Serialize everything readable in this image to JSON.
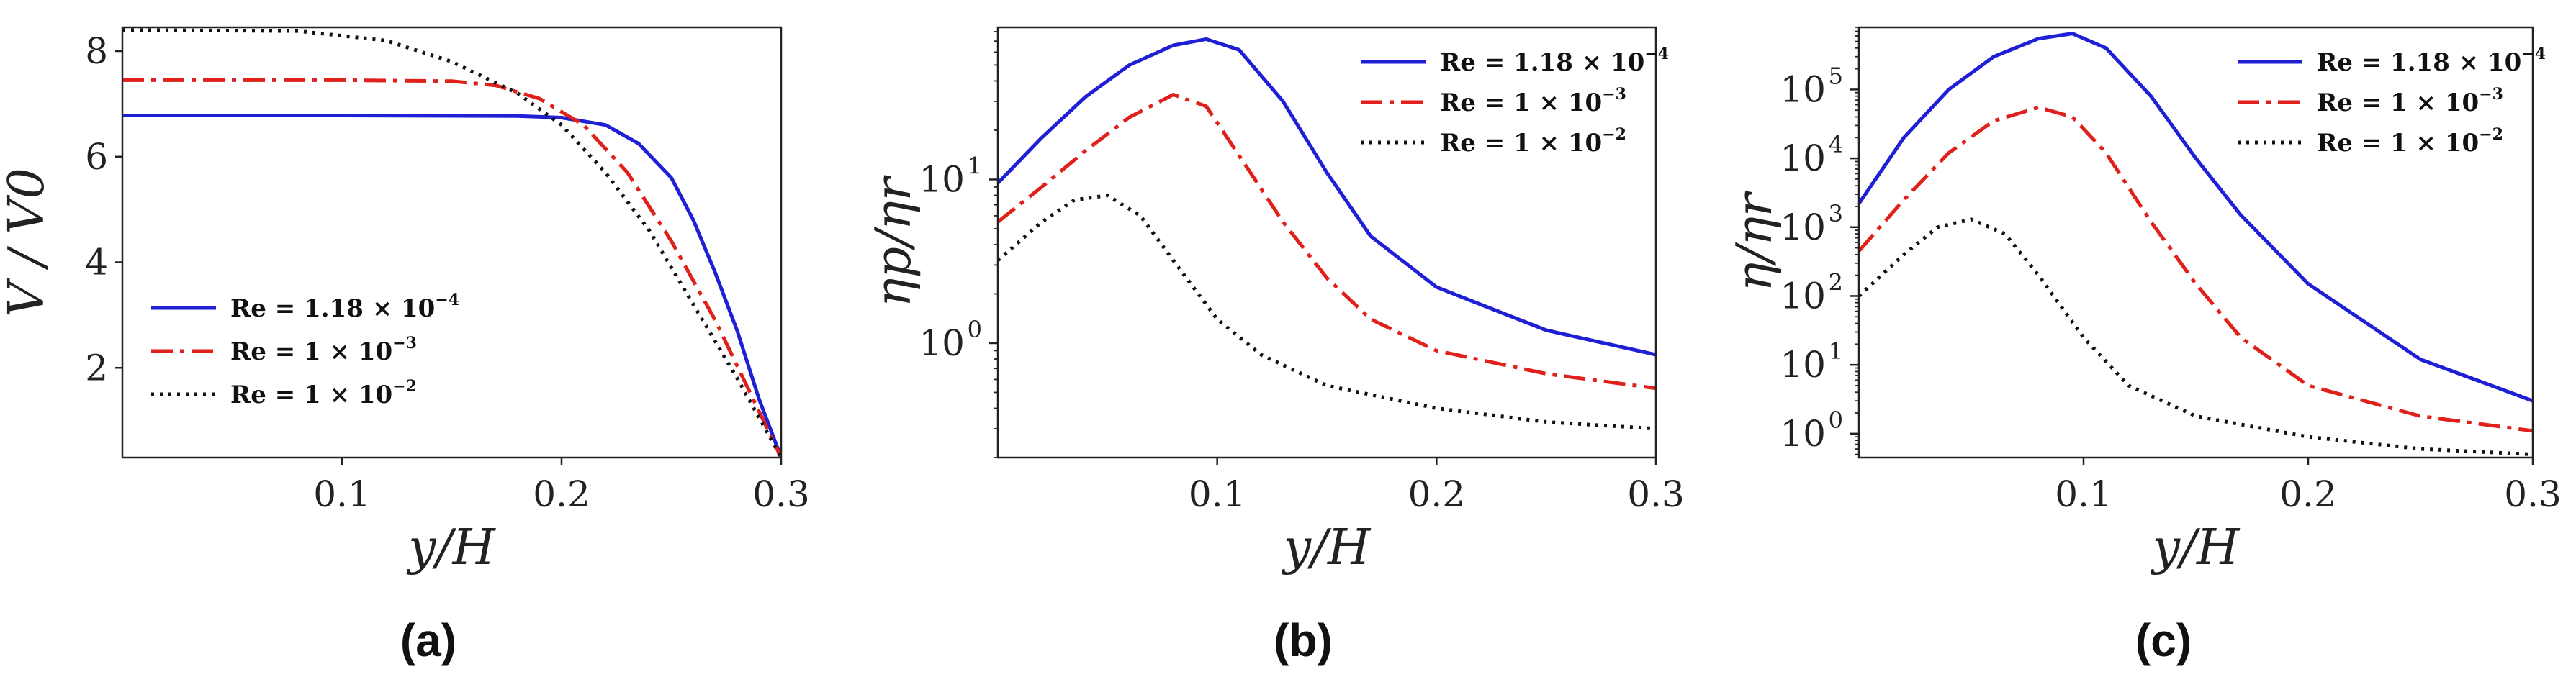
{
  "chart_data": [
    {
      "id": "a",
      "type": "line",
      "panel_label": "(a)",
      "xlabel": "y/H",
      "ylabel": "V / V0",
      "yscale": "linear",
      "xlim": [
        0.0,
        0.3
      ],
      "ylim": [
        0.3,
        8.45
      ],
      "xticks": [
        "0.1",
        "0.2",
        "0.3"
      ],
      "yticks": [
        "2",
        "4",
        "6",
        "8"
      ],
      "legend_position": "lower-left",
      "series": [
        {
          "name": "Re = 1.18 × 10^-4",
          "label_main": "Re = 1.18 × 10",
          "label_exp": "−4",
          "color": "#1f1fd6",
          "dash": "solid",
          "x": [
            0.0,
            0.1,
            0.18,
            0.2,
            0.22,
            0.235,
            0.25,
            0.26,
            0.27,
            0.28,
            0.29,
            0.3
          ],
          "y": [
            6.78,
            6.78,
            6.77,
            6.74,
            6.6,
            6.25,
            5.6,
            4.8,
            3.8,
            2.7,
            1.4,
            0.3
          ]
        },
        {
          "name": "Re = 1 × 10^-3",
          "label_main": "Re = 1 × 10",
          "label_exp": "−3",
          "color": "#e0201a",
          "dash": "dashdot",
          "x": [
            0.0,
            0.1,
            0.15,
            0.17,
            0.19,
            0.21,
            0.23,
            0.25,
            0.27,
            0.285,
            0.3
          ],
          "y": [
            7.45,
            7.45,
            7.43,
            7.35,
            7.1,
            6.6,
            5.7,
            4.4,
            2.9,
            1.6,
            0.3
          ]
        },
        {
          "name": "Re = 1 × 10^-2",
          "label_main": "Re = 1 × 10",
          "label_exp": "−2",
          "color": "#111111",
          "dash": "dotted",
          "x": [
            0.0,
            0.08,
            0.12,
            0.15,
            0.18,
            0.2,
            0.22,
            0.24,
            0.26,
            0.28,
            0.3
          ],
          "y": [
            8.4,
            8.38,
            8.2,
            7.8,
            7.2,
            6.6,
            5.7,
            4.6,
            3.2,
            1.8,
            0.3
          ]
        }
      ]
    },
    {
      "id": "b",
      "type": "line",
      "panel_label": "(b)",
      "xlabel": "y/H",
      "ylabel": "ηp/ηr",
      "yscale": "log",
      "xlim": [
        0.0,
        0.3
      ],
      "ylim": [
        0.2,
        85
      ],
      "xticks": [
        "0.1",
        "0.2",
        "0.3"
      ],
      "yticks_exp": [
        "0",
        "1"
      ],
      "ytick_values": [
        1,
        10
      ],
      "legend_position": "top-right",
      "series": [
        {
          "name": "Re = 1.18 × 10^-4",
          "label_main": "Re = 1.18 × 10",
          "label_exp": "−4",
          "color": "#1f1fd6",
          "dash": "solid",
          "x": [
            0.0,
            0.02,
            0.04,
            0.06,
            0.08,
            0.095,
            0.11,
            0.13,
            0.15,
            0.17,
            0.2,
            0.25,
            0.3
          ],
          "y": [
            9.5,
            18,
            32,
            50,
            66,
            72,
            62,
            30,
            11,
            4.5,
            2.2,
            1.2,
            0.85
          ]
        },
        {
          "name": "Re = 1 × 10^-3",
          "label_main": "Re = 1 × 10",
          "label_exp": "−3",
          "color": "#e0201a",
          "dash": "dashdot",
          "x": [
            0.0,
            0.02,
            0.04,
            0.06,
            0.08,
            0.095,
            0.11,
            0.13,
            0.15,
            0.17,
            0.2,
            0.25,
            0.3
          ],
          "y": [
            5.5,
            9,
            15,
            24,
            33,
            28,
            14,
            5.5,
            2.5,
            1.4,
            0.9,
            0.65,
            0.53
          ]
        },
        {
          "name": "Re = 1 × 10^-2",
          "label_main": "Re = 1 × 10",
          "label_exp": "−2",
          "color": "#111111",
          "dash": "dotted",
          "x": [
            0.0,
            0.02,
            0.035,
            0.05,
            0.065,
            0.08,
            0.1,
            0.12,
            0.15,
            0.2,
            0.25,
            0.3
          ],
          "y": [
            3.2,
            5.5,
            7.5,
            8.0,
            6.0,
            3.2,
            1.4,
            0.85,
            0.55,
            0.4,
            0.33,
            0.3
          ]
        }
      ]
    },
    {
      "id": "c",
      "type": "line",
      "panel_label": "(c)",
      "xlabel": "y/H",
      "ylabel": "η/ηr",
      "yscale": "log",
      "xlim": [
        0.0,
        0.3
      ],
      "ylim": [
        0.45,
        800000
      ],
      "xticks": [
        "0.1",
        "0.2",
        "0.3"
      ],
      "yticks_exp": [
        "0",
        "1",
        "2",
        "3",
        "4",
        "5"
      ],
      "ytick_values": [
        1,
        10,
        100,
        1000,
        10000,
        100000
      ],
      "legend_position": "top-right",
      "series": [
        {
          "name": "Re = 1.18 × 10^-4",
          "label_main": "Re = 1.18 × 10",
          "label_exp": "−4",
          "color": "#1f1fd6",
          "dash": "solid",
          "x": [
            0.0,
            0.02,
            0.04,
            0.06,
            0.08,
            0.095,
            0.11,
            0.13,
            0.15,
            0.17,
            0.2,
            0.25,
            0.3
          ],
          "y": [
            2200,
            20000,
            100000,
            300000,
            550000,
            650000,
            400000,
            80000,
            10000,
            1500,
            150,
            12,
            3
          ]
        },
        {
          "name": "Re = 1 × 10^-3",
          "label_main": "Re = 1 × 10",
          "label_exp": "−3",
          "color": "#e0201a",
          "dash": "dashdot",
          "x": [
            0.0,
            0.02,
            0.04,
            0.06,
            0.08,
            0.095,
            0.11,
            0.13,
            0.15,
            0.17,
            0.2,
            0.25,
            0.3
          ],
          "y": [
            450,
            2500,
            12000,
            35000,
            55000,
            40000,
            12000,
            1200,
            150,
            25,
            5,
            1.8,
            1.1
          ]
        },
        {
          "name": "Re = 1 × 10^-2",
          "label_main": "Re = 1 × 10",
          "label_exp": "−2",
          "color": "#111111",
          "dash": "dotted",
          "x": [
            0.0,
            0.02,
            0.035,
            0.05,
            0.065,
            0.08,
            0.1,
            0.12,
            0.15,
            0.2,
            0.25,
            0.3
          ],
          "y": [
            100,
            400,
            1000,
            1300,
            800,
            200,
            25,
            5,
            1.8,
            0.9,
            0.6,
            0.5
          ]
        }
      ]
    }
  ]
}
